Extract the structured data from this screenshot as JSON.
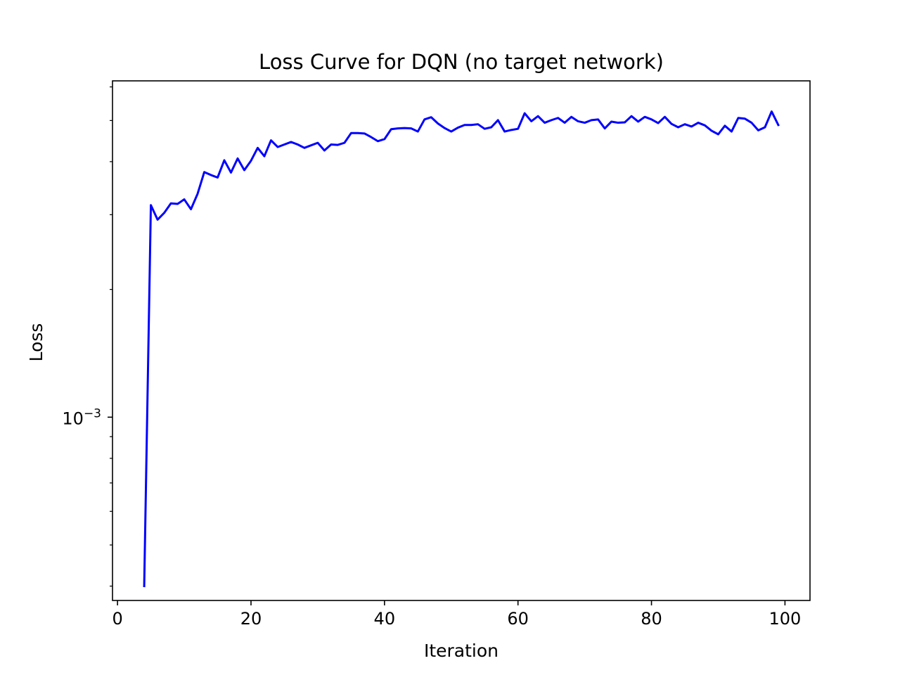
{
  "chart_data": {
    "type": "line",
    "title": "Loss Curve for DQN (no target network)",
    "xlabel": "Iteration",
    "ylabel": "Loss",
    "x_ticks": [
      0,
      20,
      40,
      60,
      80,
      100
    ],
    "y_tick_major": {
      "value": 0.001,
      "base": "10",
      "exponent": "−3"
    },
    "y_minor_ticks": [
      0.0004,
      0.0005,
      0.0006,
      0.0007,
      0.0008,
      0.0009,
      0.002,
      0.003,
      0.004,
      0.005,
      0.006
    ],
    "yscale": "log",
    "xlim": [
      -0.75,
      103.75
    ],
    "ylim": [
      0.00037,
      0.0062
    ],
    "grid": false,
    "legend": "none",
    "series": [
      {
        "color": "#0000ff",
        "x": [
          4,
          5,
          6,
          7,
          8,
          9,
          10,
          11,
          12,
          13,
          14,
          15,
          16,
          17,
          18,
          19,
          20,
          21,
          22,
          23,
          24,
          25,
          26,
          27,
          28,
          29,
          30,
          31,
          32,
          33,
          34,
          35,
          36,
          37,
          38,
          39,
          40,
          41,
          42,
          43,
          44,
          45,
          46,
          47,
          48,
          49,
          50,
          51,
          52,
          53,
          54,
          55,
          56,
          57,
          58,
          59,
          60,
          61,
          62,
          63,
          64,
          65,
          66,
          67,
          68,
          69,
          70,
          71,
          72,
          73,
          74,
          75,
          76,
          77,
          78,
          79,
          80,
          81,
          82,
          83,
          84,
          85,
          86,
          87,
          88,
          89,
          90,
          91,
          92,
          93,
          94,
          95,
          96,
          97,
          98,
          99
        ],
        "y": [
          0.0004,
          0.00316,
          0.00292,
          0.00303,
          0.00319,
          0.00318,
          0.00326,
          0.00309,
          0.00336,
          0.00378,
          0.00372,
          0.00367,
          0.00403,
          0.00377,
          0.00407,
          0.00382,
          0.00402,
          0.00431,
          0.00412,
          0.00449,
          0.00433,
          0.00439,
          0.00445,
          0.00439,
          0.00431,
          0.00437,
          0.00443,
          0.00425,
          0.00439,
          0.00438,
          0.00443,
          0.00467,
          0.00467,
          0.00466,
          0.00457,
          0.00447,
          0.00452,
          0.00477,
          0.00479,
          0.0048,
          0.00479,
          0.00471,
          0.00503,
          0.00509,
          0.00492,
          0.0048,
          0.00471,
          0.00481,
          0.00488,
          0.00488,
          0.0049,
          0.00478,
          0.00482,
          0.00501,
          0.00471,
          0.00475,
          0.00478,
          0.0052,
          0.00498,
          0.00512,
          0.00494,
          0.00501,
          0.00507,
          0.00494,
          0.0051,
          0.00498,
          0.00494,
          0.00501,
          0.00503,
          0.00479,
          0.00497,
          0.00494,
          0.00495,
          0.00512,
          0.00497,
          0.0051,
          0.00503,
          0.00493,
          0.0051,
          0.00491,
          0.00482,
          0.0049,
          0.00484,
          0.00494,
          0.00487,
          0.00473,
          0.00464,
          0.00486,
          0.00471,
          0.00507,
          0.00505,
          0.00494,
          0.00474,
          0.00482,
          0.00525,
          0.00488
        ]
      }
    ]
  }
}
